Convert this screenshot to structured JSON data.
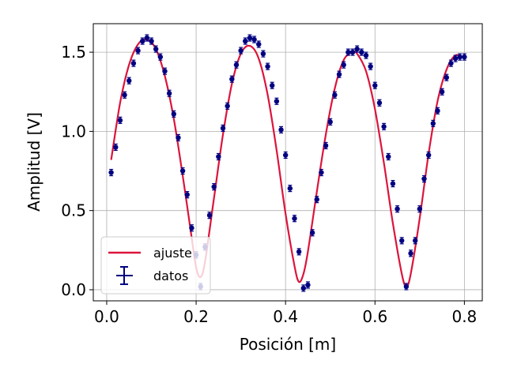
{
  "chart_data": {
    "type": "scatter",
    "xlabel": "Posición [m]",
    "ylabel": "Amplitud [V]",
    "xlim": [
      -0.03,
      0.84
    ],
    "ylim": [
      -0.07,
      1.68
    ],
    "xticks": [
      0.0,
      0.2,
      0.4,
      0.6,
      0.8
    ],
    "xtick_labels": [
      "0.0",
      "0.2",
      "0.4",
      "0.6",
      "0.8"
    ],
    "yticks": [
      0.0,
      0.5,
      1.0,
      1.5
    ],
    "ytick_labels": [
      "0.0",
      "0.5",
      "1.0",
      "1.5"
    ],
    "grid": true,
    "legend_position": "lower-left",
    "colors": {
      "fit": "#dc143c",
      "data": "#000080"
    },
    "series": [
      {
        "name": "ajuste",
        "kind": "line",
        "x": [
          0.01,
          0.03,
          0.05,
          0.07,
          0.09,
          0.11,
          0.13,
          0.15,
          0.17,
          0.19,
          0.2,
          0.21,
          0.22,
          0.24,
          0.26,
          0.28,
          0.3,
          0.32,
          0.34,
          0.36,
          0.38,
          0.4,
          0.42,
          0.43,
          0.44,
          0.45,
          0.47,
          0.49,
          0.51,
          0.53,
          0.55,
          0.56,
          0.58,
          0.6,
          0.62,
          0.64,
          0.66,
          0.67,
          0.68,
          0.7,
          0.72,
          0.74,
          0.76,
          0.78,
          0.8
        ],
        "y": [
          0.82,
          1.18,
          1.42,
          1.55,
          1.58,
          1.52,
          1.35,
          1.08,
          0.72,
          0.33,
          0.14,
          0.08,
          0.18,
          0.58,
          0.98,
          1.3,
          1.49,
          1.54,
          1.46,
          1.23,
          0.88,
          0.48,
          0.15,
          0.05,
          0.1,
          0.24,
          0.62,
          0.98,
          1.27,
          1.45,
          1.5,
          1.49,
          1.38,
          1.14,
          0.8,
          0.42,
          0.1,
          0.02,
          0.1,
          0.45,
          0.86,
          1.19,
          1.39,
          1.48,
          1.46
        ]
      },
      {
        "name": "datos",
        "kind": "errorbar",
        "x": [
          0.01,
          0.02,
          0.03,
          0.04,
          0.05,
          0.06,
          0.07,
          0.08,
          0.09,
          0.1,
          0.11,
          0.12,
          0.13,
          0.14,
          0.15,
          0.16,
          0.17,
          0.18,
          0.19,
          0.2,
          0.21,
          0.22,
          0.23,
          0.24,
          0.25,
          0.26,
          0.27,
          0.28,
          0.29,
          0.3,
          0.31,
          0.32,
          0.33,
          0.34,
          0.35,
          0.36,
          0.37,
          0.38,
          0.39,
          0.4,
          0.41,
          0.42,
          0.43,
          0.44,
          0.45,
          0.46,
          0.47,
          0.48,
          0.49,
          0.5,
          0.51,
          0.52,
          0.53,
          0.54,
          0.55,
          0.56,
          0.57,
          0.58,
          0.59,
          0.6,
          0.61,
          0.62,
          0.63,
          0.64,
          0.65,
          0.66,
          0.67,
          0.68,
          0.69,
          0.7,
          0.71,
          0.72,
          0.73,
          0.74,
          0.75,
          0.76,
          0.77,
          0.78,
          0.79,
          0.8
        ],
        "y": [
          0.74,
          0.9,
          1.07,
          1.23,
          1.32,
          1.43,
          1.51,
          1.57,
          1.59,
          1.57,
          1.52,
          1.47,
          1.38,
          1.24,
          1.11,
          0.96,
          0.75,
          0.6,
          0.39,
          0.22,
          0.02,
          0.27,
          0.47,
          0.65,
          0.84,
          1.02,
          1.16,
          1.33,
          1.42,
          1.51,
          1.57,
          1.59,
          1.58,
          1.55,
          1.49,
          1.41,
          1.29,
          1.19,
          1.01,
          0.85,
          0.64,
          0.45,
          0.24,
          0.01,
          0.03,
          0.36,
          0.57,
          0.74,
          0.91,
          1.06,
          1.23,
          1.36,
          1.42,
          1.5,
          1.5,
          1.52,
          1.5,
          1.48,
          1.41,
          1.29,
          1.18,
          1.03,
          0.84,
          0.67,
          0.51,
          0.31,
          0.02,
          0.23,
          0.31,
          0.51,
          0.7,
          0.85,
          1.05,
          1.13,
          1.25,
          1.34,
          1.43,
          1.46,
          1.47,
          1.47
        ],
        "yerr": 0.02,
        "xerr": 0.002
      }
    ]
  }
}
